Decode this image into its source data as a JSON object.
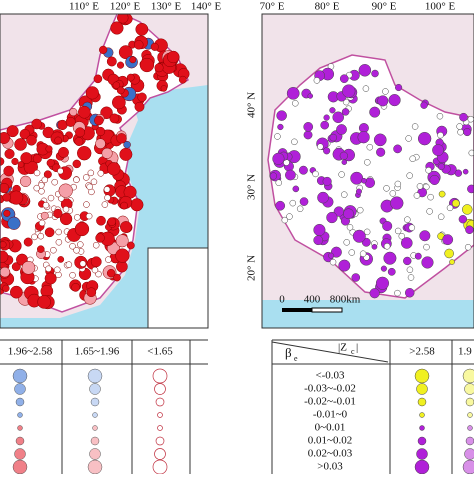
{
  "left_map": {
    "lon_labels": [
      "110° E",
      "120° E",
      "130° E",
      "140° E"
    ]
  },
  "right_map": {
    "lon_labels": [
      "70° E",
      "80° E",
      "90° E",
      "100° E"
    ],
    "lat_labels": [
      "40° N",
      "30° N",
      "20° N"
    ],
    "scale_bar": [
      "0",
      "400",
      "800km"
    ]
  },
  "left_legend": {
    "headers": [
      "1.96~2.58",
      "1.65~1.96",
      "<1.65"
    ]
  },
  "right_legend": {
    "beta": "β",
    "beta_sub": "e",
    "z": "|Z",
    "z_sub": "c",
    "z_end": "|",
    "headers": [
      ">2.58",
      "1.9"
    ],
    "rows": [
      "<-0.03",
      "-0.03~-0.02",
      "-0.02~-0.01",
      "-0.01~0",
      "0~0.01",
      "0.01~0.02",
      "0.02~0.03",
      ">0.03"
    ]
  }
}
